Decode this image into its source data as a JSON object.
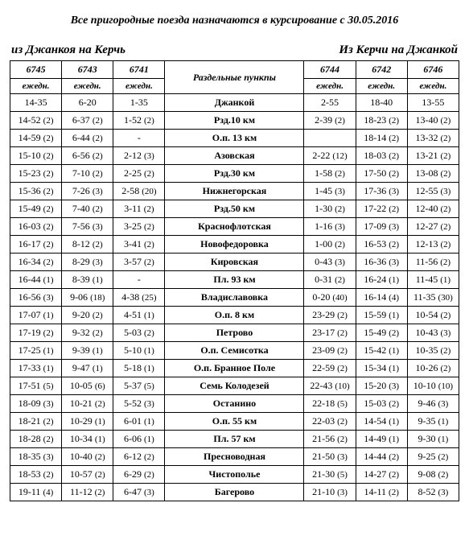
{
  "announce": "Все пригородные поезда назначаются в курсирование с 30.05.2016",
  "dir_left": "из Джанкоя на Керчь",
  "dir_right": "Из Керчи на Джанкой",
  "header_station": "Раздельные пункпы",
  "freq_label": "ежедн.",
  "trains_left": [
    "6745",
    "6743",
    "6741"
  ],
  "trains_right": [
    "6744",
    "6742",
    "6746"
  ],
  "rows": [
    {
      "s": "Джанкой",
      "l": [
        {
          "t": "14-35"
        },
        {
          "t": "6-20"
        },
        {
          "t": "1-35"
        }
      ],
      "r": [
        {
          "t": "2-55"
        },
        {
          "t": "18-40"
        },
        {
          "t": "13-55"
        }
      ]
    },
    {
      "s": "Рзд.10 км",
      "l": [
        {
          "t": "14-52",
          "p": "(2)"
        },
        {
          "t": "6-37",
          "p": "(2)"
        },
        {
          "t": "1-52",
          "p": "(2)"
        }
      ],
      "r": [
        {
          "t": "2-39",
          "p": "(2)"
        },
        {
          "t": "18-23",
          "p": "(2)"
        },
        {
          "t": "13-40",
          "p": "(2)"
        }
      ]
    },
    {
      "s": "О.п. 13 км",
      "l": [
        {
          "t": "14-59",
          "p": "(2)"
        },
        {
          "t": "6-44",
          "p": "(2)"
        },
        {
          "t": "-"
        }
      ],
      "r": [
        {
          "t": ""
        },
        {
          "t": "18-14",
          "p": "(2)"
        },
        {
          "t": "13-32",
          "p": "(2)"
        }
      ]
    },
    {
      "s": "Азовская",
      "l": [
        {
          "t": "15-10",
          "p": "(2)"
        },
        {
          "t": "6-56",
          "p": "(2)"
        },
        {
          "t": "2-12",
          "p": "(3)"
        }
      ],
      "r": [
        {
          "t": "2-22",
          "p": "(12)"
        },
        {
          "t": "18-03",
          "p": "(2)"
        },
        {
          "t": "13-21",
          "p": "(2)"
        }
      ]
    },
    {
      "s": "Рзд.30 км",
      "l": [
        {
          "t": "15-23",
          "p": "(2)"
        },
        {
          "t": "7-10",
          "p": "(2)"
        },
        {
          "t": "2-25",
          "p": "(2)"
        }
      ],
      "r": [
        {
          "t": "1-58",
          "p": "(2)"
        },
        {
          "t": "17-50",
          "p": "(2)"
        },
        {
          "t": "13-08",
          "p": "(2)"
        }
      ]
    },
    {
      "s": "Нижнегорская",
      "l": [
        {
          "t": "15-36",
          "p": "(2)"
        },
        {
          "t": "7-26",
          "p": "(3)"
        },
        {
          "t": "2-58",
          "p": "(20)"
        }
      ],
      "r": [
        {
          "t": "1-45",
          "p": "(3)"
        },
        {
          "t": "17-36",
          "p": "(3)"
        },
        {
          "t": "12-55",
          "p": "(3)"
        }
      ]
    },
    {
      "s": "Рзд.50 км",
      "l": [
        {
          "t": "15-49",
          "p": "(2)"
        },
        {
          "t": "7-40",
          "p": "(2)"
        },
        {
          "t": "3-11",
          "p": "(2)"
        }
      ],
      "r": [
        {
          "t": "1-30",
          "p": "(2)"
        },
        {
          "t": "17-22",
          "p": "(2)"
        },
        {
          "t": "12-40",
          "p": "(2)"
        }
      ]
    },
    {
      "s": "Краснофлотская",
      "l": [
        {
          "t": "16-03",
          "p": "(2)"
        },
        {
          "t": "7-56",
          "p": "(3)"
        },
        {
          "t": "3-25",
          "p": "(2)"
        }
      ],
      "r": [
        {
          "t": "1-16",
          "p": "(3)"
        },
        {
          "t": "17-09",
          "p": "(3)"
        },
        {
          "t": "12-27",
          "p": "(2)"
        }
      ]
    },
    {
      "s": "Новофедоровка",
      "l": [
        {
          "t": "16-17",
          "p": "(2)"
        },
        {
          "t": "8-12",
          "p": "(2)"
        },
        {
          "t": "3-41",
          "p": "(2)"
        }
      ],
      "r": [
        {
          "t": "1-00",
          "p": "(2)"
        },
        {
          "t": "16-53",
          "p": "(2)"
        },
        {
          "t": "12-13",
          "p": "(2)"
        }
      ]
    },
    {
      "s": "Кировская",
      "l": [
        {
          "t": "16-34",
          "p": "(2)"
        },
        {
          "t": "8-29",
          "p": "(3)"
        },
        {
          "t": "3-57",
          "p": "(2)"
        }
      ],
      "r": [
        {
          "t": "0-43",
          "p": "(3)"
        },
        {
          "t": "16-36",
          "p": "(3)"
        },
        {
          "t": "11-56",
          "p": "(2)"
        }
      ]
    },
    {
      "s": "Пл. 93 км",
      "l": [
        {
          "t": "16-44",
          "p": "(1)"
        },
        {
          "t": "8-39",
          "p": "(1)"
        },
        {
          "t": "-"
        }
      ],
      "r": [
        {
          "t": "0-31",
          "p": "(2)"
        },
        {
          "t": "16-24",
          "p": "(1)"
        },
        {
          "t": "11-45",
          "p": "(1)"
        }
      ]
    },
    {
      "s": "Владиславовка",
      "l": [
        {
          "t": "16-56",
          "p": "(3)"
        },
        {
          "t": "9-06",
          "p": "(18)"
        },
        {
          "t": "4-38",
          "p": "(25)"
        }
      ],
      "r": [
        {
          "t": "0-20",
          "p": "(40)"
        },
        {
          "t": "16-14",
          "p": "(4)"
        },
        {
          "t": "11-35",
          "p": "(30)"
        }
      ]
    },
    {
      "s": "О.п. 8 км",
      "l": [
        {
          "t": "17-07",
          "p": "(1)"
        },
        {
          "t": "9-20",
          "p": "(2)"
        },
        {
          "t": "4-51",
          "p": "(1)"
        }
      ],
      "r": [
        {
          "t": "23-29",
          "p": "(2)"
        },
        {
          "t": "15-59",
          "p": "(1)"
        },
        {
          "t": "10-54",
          "p": "(2)"
        }
      ]
    },
    {
      "s": "Петрово",
      "l": [
        {
          "t": "17-19",
          "p": "(2)"
        },
        {
          "t": "9-32",
          "p": "(2)"
        },
        {
          "t": "5-03",
          "p": "(2)"
        }
      ],
      "r": [
        {
          "t": "23-17",
          "p": "(2)"
        },
        {
          "t": "15-49",
          "p": "(2)"
        },
        {
          "t": "10-43",
          "p": "(3)"
        }
      ]
    },
    {
      "s": "О.п. Семисотка",
      "l": [
        {
          "t": "17-25",
          "p": "(1)"
        },
        {
          "t": "9-39",
          "p": "(1)"
        },
        {
          "t": "5-10",
          "p": "(1)"
        }
      ],
      "r": [
        {
          "t": "23-09",
          "p": "(2)"
        },
        {
          "t": "15-42",
          "p": "(1)"
        },
        {
          "t": "10-35",
          "p": "(2)"
        }
      ]
    },
    {
      "s": "О.п. Бранное Поле",
      "l": [
        {
          "t": "17-33",
          "p": "(1)"
        },
        {
          "t": "9-47",
          "p": "(1)"
        },
        {
          "t": "5-18",
          "p": "(1)"
        }
      ],
      "r": [
        {
          "t": "22-59",
          "p": "(2)"
        },
        {
          "t": "15-34",
          "p": "(1)"
        },
        {
          "t": "10-26",
          "p": "(2)"
        }
      ]
    },
    {
      "s": "Семь Колодезей",
      "l": [
        {
          "t": "17-51",
          "p": "(5)"
        },
        {
          "t": "10-05",
          "p": "(6)"
        },
        {
          "t": "5-37",
          "p": "(5)"
        }
      ],
      "r": [
        {
          "t": "22-43",
          "p": "(10)"
        },
        {
          "t": "15-20",
          "p": "(3)"
        },
        {
          "t": "10-10",
          "p": "(10)"
        }
      ]
    },
    {
      "s": "Останино",
      "l": [
        {
          "t": "18-09",
          "p": "(3)"
        },
        {
          "t": "10-21",
          "p": "(2)"
        },
        {
          "t": "5-52",
          "p": "(3)"
        }
      ],
      "r": [
        {
          "t": "22-18",
          "p": "(5)"
        },
        {
          "t": "15-03",
          "p": "(2)"
        },
        {
          "t": "9-46",
          "p": "(3)"
        }
      ]
    },
    {
      "s": "О.п.  55 км",
      "l": [
        {
          "t": "18-21",
          "p": "(2)"
        },
        {
          "t": "10-29",
          "p": "(1)"
        },
        {
          "t": "6-01",
          "p": "(1)"
        }
      ],
      "r": [
        {
          "t": "22-03",
          "p": "(2)"
        },
        {
          "t": "14-54",
          "p": "(1)"
        },
        {
          "t": "9-35",
          "p": "(1)"
        }
      ]
    },
    {
      "s": "Пл. 57 км",
      "l": [
        {
          "t": "18-28",
          "p": "(2)"
        },
        {
          "t": "10-34",
          "p": "(1)"
        },
        {
          "t": "6-06",
          "p": "(1)"
        }
      ],
      "r": [
        {
          "t": "21-56",
          "p": "(2)"
        },
        {
          "t": "14-49",
          "p": "(1)"
        },
        {
          "t": "9-30",
          "p": "(1)"
        }
      ]
    },
    {
      "s": "Пресноводная",
      "l": [
        {
          "t": "18-35",
          "p": "(3)"
        },
        {
          "t": "10-40",
          "p": "(2)"
        },
        {
          "t": "6-12",
          "p": "(2)"
        }
      ],
      "r": [
        {
          "t": "21-50",
          "p": "(3)"
        },
        {
          "t": "14-44",
          "p": "(2)"
        },
        {
          "t": "9-25",
          "p": "(2)"
        }
      ]
    },
    {
      "s": "Чистополье",
      "l": [
        {
          "t": "18-53",
          "p": "(2)"
        },
        {
          "t": "10-57",
          "p": "(2)"
        },
        {
          "t": "6-29",
          "p": "(2)"
        }
      ],
      "r": [
        {
          "t": "21-30",
          "p": "(5)"
        },
        {
          "t": "14-27",
          "p": "(2)"
        },
        {
          "t": "9-08",
          "p": "(2)"
        }
      ]
    },
    {
      "s": "Багерово",
      "l": [
        {
          "t": "19-11",
          "p": "(4)"
        },
        {
          "t": "11-12",
          "p": "(2)"
        },
        {
          "t": "6-47",
          "p": "(3)"
        }
      ],
      "r": [
        {
          "t": "21-10",
          "p": "(3)"
        },
        {
          "t": "14-11",
          "p": "(2)"
        },
        {
          "t": "8-52",
          "p": "(3)"
        }
      ]
    }
  ]
}
